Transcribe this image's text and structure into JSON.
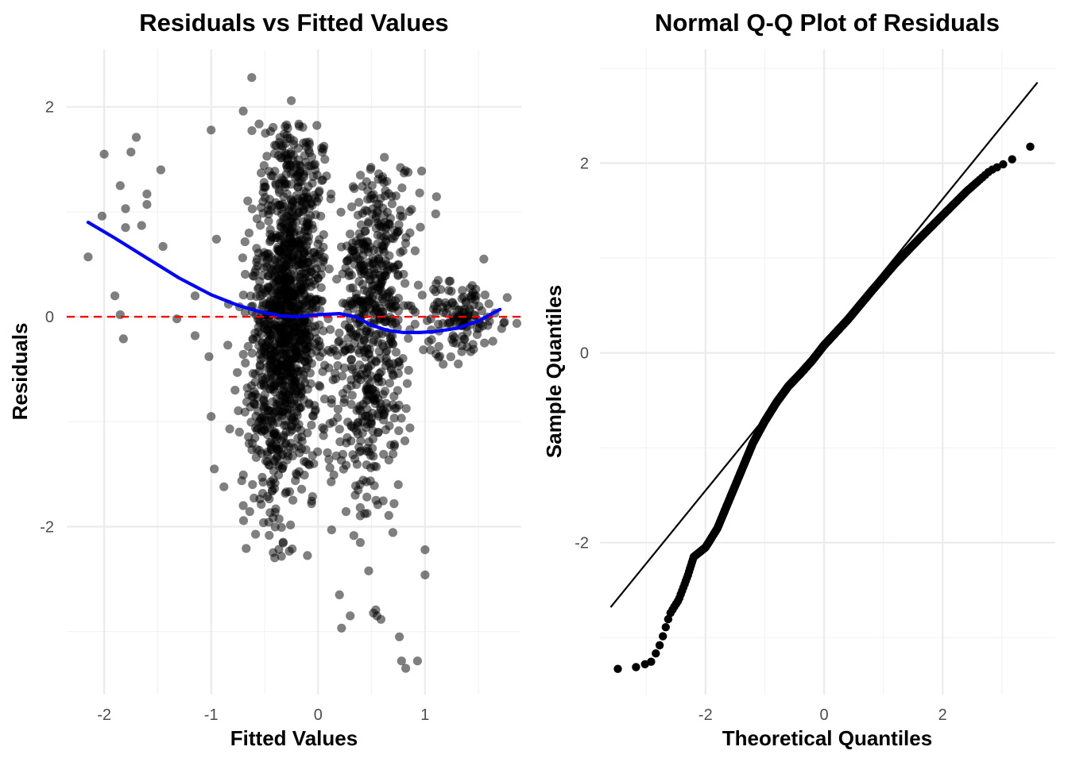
{
  "chart_data": [
    {
      "type": "scatter",
      "title": "Residuals vs Fitted Values",
      "xlabel": "Fitted Values",
      "ylabel": "Residuals",
      "xlim": [
        -2.35,
        1.9
      ],
      "ylim": [
        -3.6,
        2.55
      ],
      "xticks": [
        -2,
        -1,
        0,
        1
      ],
      "xtick_labels": [
        "-2",
        "-1",
        "0",
        "1"
      ],
      "yticks": [
        -2,
        0,
        2
      ],
      "ytick_labels": [
        "-2",
        "0",
        "2"
      ],
      "reference_line": {
        "y": 0,
        "color": "#ff0000",
        "style": "dashed"
      },
      "smooth": {
        "color": "#0000ff",
        "x": [
          -2.15,
          -1.9,
          -1.6,
          -1.3,
          -1.0,
          -0.75,
          -0.55,
          -0.35,
          -0.2,
          0.0,
          0.2,
          0.35,
          0.5,
          0.65,
          0.8,
          0.95,
          1.1,
          1.3,
          1.5,
          1.7
        ],
        "y": [
          0.9,
          0.75,
          0.56,
          0.37,
          0.21,
          0.11,
          0.05,
          0.01,
          0.0,
          0.02,
          0.03,
          0.0,
          -0.08,
          -0.13,
          -0.15,
          -0.15,
          -0.14,
          -0.11,
          -0.04,
          0.07
        ]
      },
      "point_color": "#000000",
      "sparse_points": [
        {
          "x": -2.15,
          "y": 0.57
        },
        {
          "x": -2.0,
          "y": 1.55
        },
        {
          "x": -2.02,
          "y": 0.96
        },
        {
          "x": -1.9,
          "y": 0.2
        },
        {
          "x": -1.85,
          "y": 0.02
        },
        {
          "x": -1.82,
          "y": -0.21
        },
        {
          "x": -1.85,
          "y": 1.25
        },
        {
          "x": -1.75,
          "y": 1.57
        },
        {
          "x": -1.7,
          "y": 1.71
        },
        {
          "x": -1.6,
          "y": 1.17
        },
        {
          "x": -1.6,
          "y": 1.07
        },
        {
          "x": -1.65,
          "y": 0.87
        },
        {
          "x": -1.8,
          "y": 1.03
        },
        {
          "x": -1.8,
          "y": 0.85
        },
        {
          "x": -1.47,
          "y": 1.4
        },
        {
          "x": -1.45,
          "y": 0.67
        },
        {
          "x": -1.32,
          "y": -0.02
        },
        {
          "x": -1.15,
          "y": 0.2
        },
        {
          "x": -1.15,
          "y": -0.18
        },
        {
          "x": -1.02,
          "y": -0.38
        },
        {
          "x": -1.0,
          "y": -0.95
        },
        {
          "x": -0.97,
          "y": -1.45
        },
        {
          "x": -0.88,
          "y": -1.62
        },
        {
          "x": -1.0,
          "y": 1.78
        },
        {
          "x": -0.95,
          "y": 0.74
        },
        {
          "x": -0.62,
          "y": 2.28
        },
        {
          "x": -0.25,
          "y": 2.06
        },
        {
          "x": -0.7,
          "y": 1.96
        },
        {
          "x": 0.62,
          "y": 1.52
        },
        {
          "x": 0.95,
          "y": 1.18
        },
        {
          "x": 1.1,
          "y": 0.98
        },
        {
          "x": 1.0,
          "y": -2.22
        },
        {
          "x": 1.0,
          "y": -2.46
        },
        {
          "x": 0.76,
          "y": -3.05
        },
        {
          "x": 0.78,
          "y": -3.28
        },
        {
          "x": 0.82,
          "y": -3.35
        },
        {
          "x": 0.93,
          "y": -3.28
        },
        {
          "x": 0.3,
          "y": -2.85
        },
        {
          "x": 0.55,
          "y": -2.85
        },
        {
          "x": 0.2,
          "y": -2.65
        },
        {
          "x": -0.7,
          "y": -1.8
        },
        {
          "x": 0.75,
          "y": -1.6
        },
        {
          "x": 1.55,
          "y": 0.55
        }
      ],
      "clusters": [
        {
          "x_center": -0.3,
          "x_sd": 0.16,
          "y_mean": 0.05,
          "y_sd": 0.95,
          "y_min": -2.35,
          "y_max": 1.85,
          "count": 1250
        },
        {
          "x_center": 0.5,
          "x_sd": 0.17,
          "y_mean": 0.0,
          "y_sd": 0.95,
          "y_min": -3.15,
          "y_max": 1.45,
          "count": 600
        },
        {
          "x_center": 1.3,
          "x_sd": 0.17,
          "y_mean": 0.02,
          "y_sd": 0.2,
          "y_min": -0.5,
          "y_max": 0.55,
          "count": 130
        }
      ]
    },
    {
      "type": "scatter",
      "title": "Normal Q-Q Plot of Residuals",
      "xlabel": "Theoretical Quantiles",
      "ylabel": "Sample Quantiles",
      "xlim": [
        -3.78,
        3.9
      ],
      "ylim": [
        -3.6,
        3.2
      ],
      "xticks": [
        -2,
        0,
        2
      ],
      "xtick_labels": [
        "-2",
        "0",
        "2"
      ],
      "yticks": [
        -2,
        0,
        2
      ],
      "ytick_labels": [
        "-2",
        "0",
        "2"
      ],
      "reference_line": {
        "x": [
          -3.6,
          3.6
        ],
        "y": [
          -2.68,
          2.85
        ],
        "color": "#000000",
        "style": "solid"
      },
      "point_color": "#000000",
      "quantile_curve": {
        "theoretical": [
          -3.6,
          -3.3,
          -3.1,
          -2.9,
          -2.75,
          -2.6,
          -2.45,
          -2.3,
          -2.2,
          -2.0,
          -1.8,
          -1.6,
          -1.4,
          -1.2,
          -1.0,
          -0.8,
          -0.6,
          -0.4,
          -0.2,
          0.0,
          0.4,
          0.8,
          1.2,
          1.6,
          2.0,
          2.4,
          2.8,
          3.0,
          3.2,
          3.35,
          3.6
        ],
        "sample": [
          -3.33,
          -3.33,
          -3.3,
          -3.25,
          -3.05,
          -2.75,
          -2.6,
          -2.35,
          -2.15,
          -2.05,
          -1.85,
          -1.55,
          -1.25,
          -0.95,
          -0.72,
          -0.52,
          -0.35,
          -0.22,
          -0.08,
          0.08,
          0.35,
          0.65,
          0.94,
          1.2,
          1.45,
          1.7,
          1.92,
          1.98,
          2.05,
          2.06,
          2.28
        ]
      },
      "n_points": 1980
    }
  ]
}
